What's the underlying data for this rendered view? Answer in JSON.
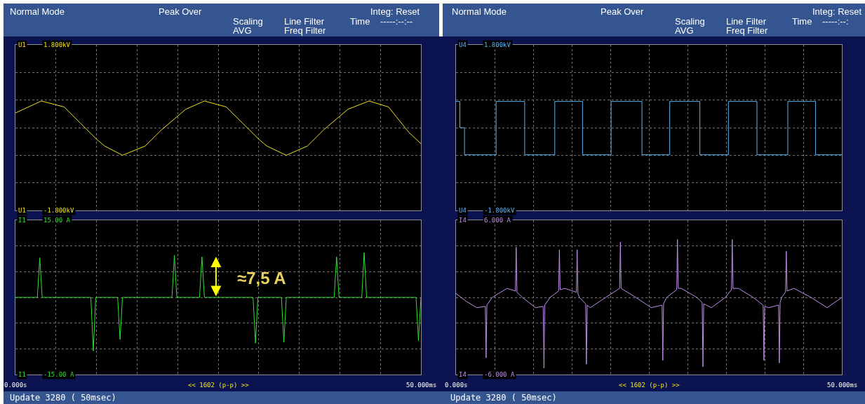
{
  "chart_data": [
    {
      "type": "line",
      "grid": true,
      "marker": "none",
      "tick_labels": "y",
      "annotations": [
        "Normal Mode",
        "Peak Over",
        "Scaling",
        "AVG",
        "Line Filter",
        "Freq Filter",
        "Integ: Reset",
        "Time",
        "-----:--:--"
      ],
      "xlim": [
        0,
        50
      ],
      "xticks": [
        {
          "value": 0,
          "label": null
        },
        {
          "value": 5,
          "label": null
        },
        {
          "value": 10,
          "label": null
        },
        {
          "value": 15,
          "label": null
        },
        {
          "value": 20,
          "label": null
        },
        {
          "value": 25,
          "label": null
        },
        {
          "value": 30,
          "label": null
        },
        {
          "value": 35,
          "label": null
        },
        {
          "value": 40,
          "label": null
        },
        {
          "value": 45,
          "label": null
        },
        {
          "value": 50,
          "label": null
        }
      ],
      "ylim": [
        -1.8,
        1.8
      ],
      "yticks": [
        {
          "value": -1.8,
          "label": "-1.800kV"
        },
        {
          "value": -1.2,
          "label": null
        },
        {
          "value": -0.6,
          "label": null
        },
        {
          "value": 0,
          "label": null
        },
        {
          "value": 0.6,
          "label": null
        },
        {
          "value": 1.2,
          "label": null
        },
        {
          "value": 1.8,
          "label": "1.800kV"
        }
      ],
      "series": [
        {
          "name": "U1",
          "color": "#f0e020",
          "x": [
            0,
            3.2,
            6,
            8,
            10,
            11,
            13.2,
            16,
            18,
            20,
            21,
            23.3,
            26,
            28,
            30,
            31,
            33.4,
            36,
            38,
            40,
            41,
            43.6,
            46,
            48.5,
            50
          ],
          "values": [
            0.32,
            0.58,
            0.45,
            0.1,
            -0.25,
            -0.4,
            -0.6,
            -0.4,
            -0.05,
            0.25,
            0.4,
            0.58,
            0.45,
            0.1,
            -0.25,
            -0.4,
            -0.6,
            -0.4,
            -0.05,
            0.25,
            0.4,
            0.58,
            0.45,
            -0.1,
            -0.35
          ]
        }
      ]
    },
    {
      "type": "step",
      "grid": true,
      "marker": "none",
      "tick_labels": "y",
      "annotations": [
        "Normal Mode",
        "Peak Over",
        "Scaling",
        "AVG",
        "Line Filter",
        "Freq Filter",
        "Integ: Reset",
        "Time",
        "-----:--:"
      ],
      "xlim": [
        0,
        50
      ],
      "xticks": [
        {
          "value": 0,
          "label": null
        },
        {
          "value": 5,
          "label": null
        },
        {
          "value": 10,
          "label": null
        },
        {
          "value": 15,
          "label": null
        },
        {
          "value": 20,
          "label": null
        },
        {
          "value": 25,
          "label": null
        },
        {
          "value": 30,
          "label": null
        },
        {
          "value": 35,
          "label": null
        },
        {
          "value": 40,
          "label": null
        },
        {
          "value": 45,
          "label": null
        },
        {
          "value": 50,
          "label": null
        }
      ],
      "ylim": [
        -1.8,
        1.8
      ],
      "yticks": [
        {
          "value": -1.8,
          "label": "-1.800kV"
        },
        {
          "value": -1.2,
          "label": null
        },
        {
          "value": -0.6,
          "label": null
        },
        {
          "value": 0,
          "label": null
        },
        {
          "value": 0.6,
          "label": null
        },
        {
          "value": 1.2,
          "label": null
        },
        {
          "value": 1.8,
          "label": "1.800kV"
        }
      ],
      "series": [
        {
          "name": "U4",
          "color": "#5ab4f0",
          "x": [
            0,
            0.5,
            1.1,
            5.2,
            8.9,
            12.8,
            16.4,
            20.1,
            24.1,
            27.7,
            31.6,
            35.3,
            39.0,
            43.0,
            46.6,
            50
          ],
          "values": [
            0.57,
            0,
            -0.59,
            0.57,
            -0.59,
            0.57,
            -0.59,
            0.57,
            -0.59,
            0.57,
            -0.59,
            0.57,
            -0.59,
            0.57,
            -0.59,
            -0.59
          ]
        }
      ]
    },
    {
      "type": "line",
      "grid": true,
      "marker": "none",
      "annotations": [
        "<< 1602 (p-p) >>",
        "Update 3280 ( 50msec)",
        {
          "text": "≈7,5 A",
          "x": 23.0,
          "y": 7.9
        }
      ],
      "xlim": [
        0,
        50
      ],
      "xticks": [
        {
          "value": 0,
          "label": "0.000s"
        },
        {
          "value": 5,
          "label": null
        },
        {
          "value": 10,
          "label": null
        },
        {
          "value": 15,
          "label": null
        },
        {
          "value": 20,
          "label": null
        },
        {
          "value": 25,
          "label": null
        },
        {
          "value": 30,
          "label": null
        },
        {
          "value": 35,
          "label": null
        },
        {
          "value": 40,
          "label": null
        },
        {
          "value": 45,
          "label": null
        },
        {
          "value": 50,
          "label": "50.000ms"
        }
      ],
      "ylim": [
        -15,
        15
      ],
      "yticks": [
        {
          "value": -15,
          "label": "-15.00 A"
        },
        {
          "value": -10,
          "label": null
        },
        {
          "value": -5,
          "label": null
        },
        {
          "value": 0,
          "label": null
        },
        {
          "value": 5,
          "label": null
        },
        {
          "value": 10,
          "label": null
        },
        {
          "value": 15,
          "label": "15.00 A"
        }
      ],
      "series": [
        {
          "name": "I1",
          "color": "#30e030",
          "x": [
            0,
            2.7,
            3.0,
            3.3,
            9.3,
            9.6,
            9.9,
            12.6,
            12.9,
            13.2,
            19.3,
            19.6,
            19.9,
            22.7,
            23.0,
            23.3,
            29.3,
            29.6,
            29.9,
            32.8,
            33.1,
            33.4,
            39.3,
            39.6,
            39.9,
            42.7,
            43.0,
            43.3,
            49.4,
            49.7,
            50
          ],
          "values": [
            0,
            0,
            7.7,
            0,
            0,
            -10.4,
            0,
            0,
            -8.2,
            0,
            0,
            8.2,
            0,
            0,
            7.9,
            0,
            0,
            -8.9,
            0,
            0,
            -8.7,
            0,
            0,
            7.9,
            0,
            0,
            8.7,
            0,
            0,
            -8.4,
            0
          ]
        }
      ]
    },
    {
      "type": "line",
      "grid": true,
      "marker": "none",
      "annotations": [
        "<< 1602 (p-p) >>",
        "Update 3280 ( 50msec)"
      ],
      "xlim": [
        0,
        50
      ],
      "xticks": [
        {
          "value": 0,
          "label": "0.000s"
        },
        {
          "value": 5,
          "label": null
        },
        {
          "value": 10,
          "label": null
        },
        {
          "value": 15,
          "label": null
        },
        {
          "value": 20,
          "label": null
        },
        {
          "value": 25,
          "label": null
        },
        {
          "value": 30,
          "label": null
        },
        {
          "value": 35,
          "label": null
        },
        {
          "value": 40,
          "label": null
        },
        {
          "value": 45,
          "label": null
        },
        {
          "value": 50,
          "label": "50.000ms"
        }
      ],
      "ylim": [
        -6,
        6
      ],
      "yticks": [
        {
          "value": -6,
          "label": "-6.000 A"
        },
        {
          "value": -4,
          "label": null
        },
        {
          "value": -2,
          "label": null
        },
        {
          "value": 0,
          "label": null
        },
        {
          "value": 2,
          "label": null
        },
        {
          "value": 4,
          "label": null
        },
        {
          "value": 6,
          "label": "6.000 A"
        }
      ],
      "series": [
        {
          "name": "I4",
          "color": "#c090e8",
          "x": [
            0,
            1.3,
            2.7,
            3.8,
            3.9,
            4.0,
            4.7,
            6.6,
            7.7,
            7.8,
            7.9,
            8.6,
            10.3,
            11.3,
            11.4,
            11.5,
            12.2,
            13.3,
            13.4,
            13.5,
            14.1,
            15.6,
            15.7,
            15.8,
            16.0,
            16.8,
            16.9,
            17.0,
            17.4,
            19.4,
            21.2,
            21.3,
            21.4,
            23.3,
            25.3,
            26.7,
            26.8,
            26.9,
            27.3,
            28.6,
            28.7,
            28.8,
            29.2,
            31.2,
            31.9,
            32.0,
            32.1,
            33.1,
            34.9,
            35.7,
            35.8,
            35.9,
            36.6,
            38.5,
            39.8,
            39.9,
            40.0,
            40.5,
            41.8,
            41.9,
            42.0,
            42.2,
            42.7,
            42.8,
            42.9,
            43.8,
            46.0,
            48.1,
            50.0
          ],
          "values": [
            0.3,
            -0.3,
            -0.8,
            -0.7,
            -4.7,
            -0.6,
            0.0,
            0.7,
            0.5,
            3.9,
            0.4,
            0.0,
            -0.8,
            -0.7,
            -5.5,
            -0.6,
            0.0,
            0.5,
            3.7,
            0.6,
            0.7,
            0.4,
            3.7,
            0.3,
            0.0,
            -0.5,
            -5.2,
            -0.6,
            -0.8,
            0.0,
            0.7,
            4.3,
            0.7,
            0.0,
            -0.8,
            -0.6,
            -4.9,
            -0.5,
            0.0,
            0.6,
            4.5,
            0.7,
            0.7,
            0.0,
            -0.4,
            -5.4,
            -0.5,
            -0.8,
            0.0,
            0.6,
            4.5,
            0.7,
            0.7,
            0.0,
            -0.6,
            -4.9,
            -0.7,
            -0.8,
            -0.6,
            -5.1,
            -0.4,
            0.0,
            0.4,
            3.6,
            0.5,
            0.7,
            0.0,
            -0.8,
            0.0
          ]
        }
      ]
    }
  ]
}
